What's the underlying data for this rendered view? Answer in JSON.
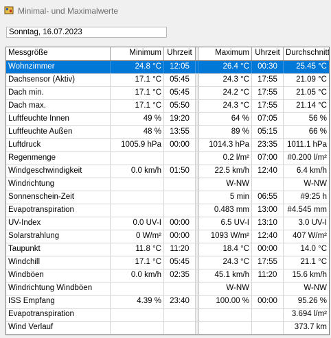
{
  "window": {
    "title": "Minimal- und Maximalwerte"
  },
  "date_field": {
    "value": "Sonntag, 16.07.2023"
  },
  "columns": {
    "name": "Messgröße",
    "min": "Minimum",
    "min_time": "Uhrzeit",
    "max": "Maximum",
    "max_time": "Uhrzeit",
    "avg": "Durchschnitt"
  },
  "rows": [
    {
      "name": "Wohnzimmer",
      "min": "24.8 °C",
      "min_time": "12:05",
      "max": "26.4 °C",
      "max_time": "00:30",
      "avg": "25.45 °C"
    },
    {
      "name": "Dachsensor (Aktiv)",
      "min": "17.1 °C",
      "min_time": "05:45",
      "max": "24.3 °C",
      "max_time": "17:55",
      "avg": "21.09 °C"
    },
    {
      "name": "Dach min.",
      "min": "17.1 °C",
      "min_time": "05:45",
      "max": "24.2 °C",
      "max_time": "17:55",
      "avg": "21.05 °C"
    },
    {
      "name": "Dach max.",
      "min": "17.1 °C",
      "min_time": "05:50",
      "max": "24.3 °C",
      "max_time": "17:55",
      "avg": "21.14 °C"
    },
    {
      "name": "Luftfeuchte Innen",
      "min": "49 %",
      "min_time": "19:20",
      "max": "64 %",
      "max_time": "07:05",
      "avg": "56 %"
    },
    {
      "name": "Luftfeuchte Außen",
      "min": "48 %",
      "min_time": "13:55",
      "max": "89 %",
      "max_time": "05:15",
      "avg": "66 %"
    },
    {
      "name": "Luftdruck",
      "min": "1005.9 hPa",
      "min_time": "00:00",
      "max": "1014.3 hPa",
      "max_time": "23:35",
      "avg": "1011.1 hPa"
    },
    {
      "name": "Regenmenge",
      "min": "",
      "min_time": "",
      "max": "0.2 l/m²",
      "max_time": "07:00",
      "avg": "#0.200 l/m²"
    },
    {
      "name": "Windgeschwindigkeit",
      "min": "0.0 km/h",
      "min_time": "01:50",
      "max": "22.5 km/h",
      "max_time": "12:40",
      "avg": "6.4 km/h"
    },
    {
      "name": "Windrichtung",
      "min": "",
      "min_time": "",
      "max": "W-NW",
      "max_time": "",
      "avg": "W-NW"
    },
    {
      "name": "Sonnenschein-Zeit",
      "min": "",
      "min_time": "",
      "max": "5 min",
      "max_time": "06:55",
      "avg": "#9:25 h"
    },
    {
      "name": "Evapotranspiration",
      "min": "",
      "min_time": "",
      "max": "0.483 mm",
      "max_time": "13:00",
      "avg": "#4.545 mm"
    },
    {
      "name": "UV-Index",
      "min": "0.0 UV-I",
      "min_time": "00:00",
      "max": "6.5 UV-I",
      "max_time": "13:10",
      "avg": "3.0 UV-I"
    },
    {
      "name": "Solarstrahlung",
      "min": "0 W/m²",
      "min_time": "00:00",
      "max": "1093 W/m²",
      "max_time": "12:40",
      "avg": "407 W/m²"
    },
    {
      "name": "Taupunkt",
      "min": "11.8 °C",
      "min_time": "11:20",
      "max": "18.4 °C",
      "max_time": "00:00",
      "avg": "14.0 °C"
    },
    {
      "name": "Windchill",
      "min": "17.1 °C",
      "min_time": "05:45",
      "max": "24.3 °C",
      "max_time": "17:55",
      "avg": "21.1 °C"
    },
    {
      "name": "Windböen",
      "min": "0.0 km/h",
      "min_time": "02:35",
      "max": "45.1 km/h",
      "max_time": "11:20",
      "avg": "15.6 km/h"
    },
    {
      "name": "Windrichtung Windböen",
      "min": "",
      "min_time": "",
      "max": "W-NW",
      "max_time": "",
      "avg": "W-NW"
    },
    {
      "name": "ISS Empfang",
      "min": "4.39 %",
      "min_time": "23:40",
      "max": "100.00 %",
      "max_time": "00:00",
      "avg": "95.26 %"
    },
    {
      "name": "Evapotranspiration",
      "min": "",
      "min_time": "",
      "max": "",
      "max_time": "",
      "avg": "3.694 l/m²"
    },
    {
      "name": "Wind Verlauf",
      "min": "",
      "min_time": "",
      "max": "",
      "max_time": "",
      "avg": "373.7 km"
    }
  ],
  "selected_row_index": 0,
  "colors": {
    "selection": "#0078d7",
    "window_bg": "#f0f0f0",
    "title_text": "#6d6d6d"
  }
}
